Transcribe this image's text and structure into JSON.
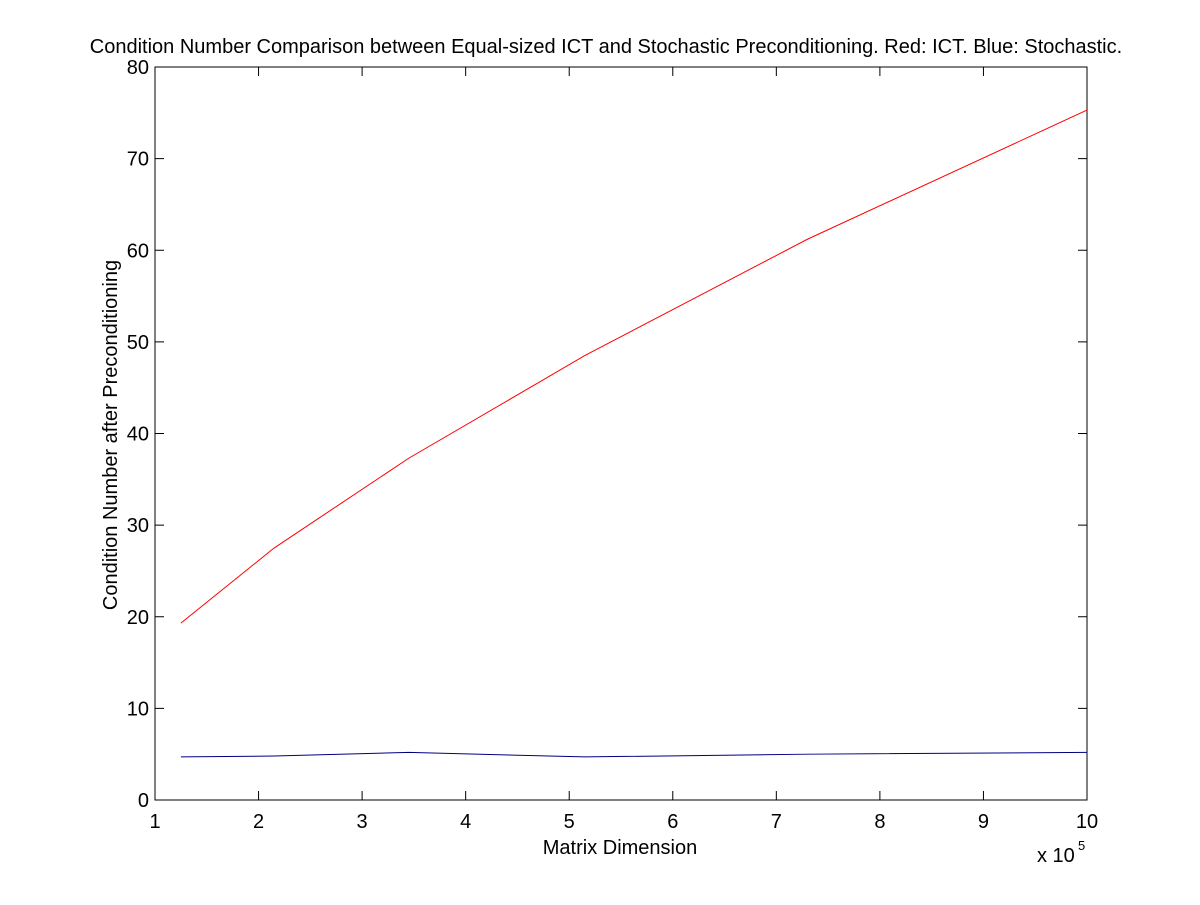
{
  "chart_data": {
    "type": "line",
    "title": "Condition Number Comparison between Equal-sized ICT and Stochastic Preconditioning. Red: ICT. Blue: Stochastic.",
    "xlabel": "Matrix Dimension",
    "ylabel": "Condition Number after Preconditioning",
    "x_exponent_label": {
      "base": "x 10",
      "exponent": "5"
    },
    "xlim": [
      1,
      10
    ],
    "ylim": [
      0,
      80
    ],
    "x_ticks": [
      "1",
      "2",
      "3",
      "4",
      "5",
      "6",
      "7",
      "8",
      "9",
      "10"
    ],
    "y_ticks": [
      "0",
      "10",
      "20",
      "30",
      "40",
      "50",
      "60",
      "70",
      "80"
    ],
    "grid": false,
    "legend": "none",
    "series": [
      {
        "color": "#ff0000",
        "x": [
          1.25,
          2.15,
          3.45,
          5.15,
          7.3,
          10.0
        ],
        "y": [
          19.3,
          27.5,
          37.3,
          48.5,
          61.2,
          75.3
        ]
      },
      {
        "color": "#00007f",
        "x": [
          1.25,
          2.15,
          3.45,
          5.15,
          7.3,
          10.0
        ],
        "y": [
          4.7,
          4.8,
          5.2,
          4.7,
          5.0,
          5.2
        ]
      }
    ]
  }
}
